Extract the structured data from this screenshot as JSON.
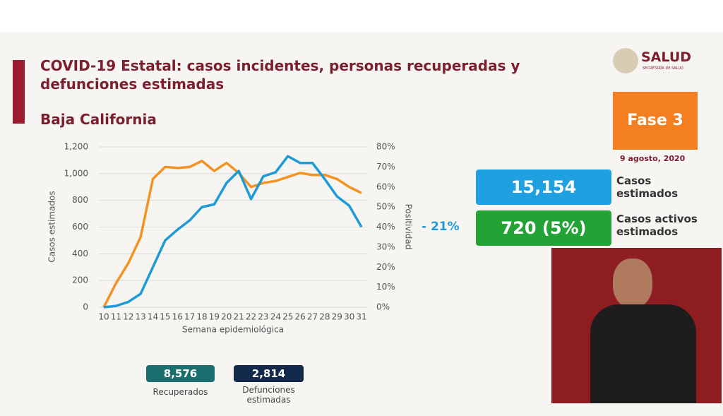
{
  "header": {
    "title": "COVID-19 Estatal: casos incidentes, personas recuperadas y defunciones estimadas",
    "subtitle": "Baja California",
    "logo": "SALUD",
    "logo_sub": "SECRETARÍA DE SALUD"
  },
  "phase": "Fase 3",
  "date": "9 agosto, 2020",
  "stats": [
    {
      "value": "15,154",
      "label": "Casos estimados"
    },
    {
      "value": "720 (5%)",
      "label": "Casos activos estimados"
    }
  ],
  "change": "- 21%",
  "footer": [
    {
      "value": "8,576",
      "label": "Recuperados"
    },
    {
      "value": "2,814",
      "label": "Defunciones estimadas"
    }
  ],
  "chart_data": {
    "type": "line",
    "x_label": "Semana epidemiológica",
    "y_label": "Casos estimados",
    "y2_label": "Positividad",
    "categories": [
      "10",
      "11",
      "12",
      "13",
      "14",
      "15",
      "16",
      "17",
      "18",
      "19",
      "20",
      "21",
      "22",
      "23",
      "24",
      "25",
      "26",
      "27",
      "28",
      "29",
      "30",
      "31"
    ],
    "ylim": [
      0,
      1200
    ],
    "yticks": [
      0,
      200,
      400,
      600,
      800,
      {
        "value": 1000,
        "label": "1,000"
      },
      {
        "value": 1200,
        "label": "1,200"
      }
    ],
    "y2lim": [
      0,
      80
    ],
    "y2ticks": [
      {
        "value": 0,
        "label": "0%"
      },
      {
        "value": 10,
        "label": "10%"
      },
      {
        "value": 20,
        "label": "20%"
      },
      {
        "value": 30,
        "label": "30%"
      },
      {
        "value": 40,
        "label": "40%"
      },
      {
        "value": 50,
        "label": "50%"
      },
      {
        "value": 60,
        "label": "60%"
      },
      {
        "value": 70,
        "label": "70%"
      },
      {
        "value": 80,
        "label": "80%"
      }
    ],
    "grid": true,
    "series": [
      {
        "color": "#1e9bd7",
        "values": [
          0,
          10,
          40,
          100,
          300,
          500,
          580,
          650,
          750,
          770,
          930,
          1020,
          810,
          980,
          1010,
          1130,
          1080,
          1080,
          960,
          830,
          760,
          600
        ]
      },
      {
        "color": "#f39323",
        "axis": "y2",
        "values": [
          0,
          12,
          22,
          35,
          64,
          70,
          69.5,
          70,
          73,
          68,
          72,
          67,
          60,
          62,
          63,
          65,
          67,
          66,
          66,
          64,
          60,
          57
        ]
      }
    ]
  }
}
